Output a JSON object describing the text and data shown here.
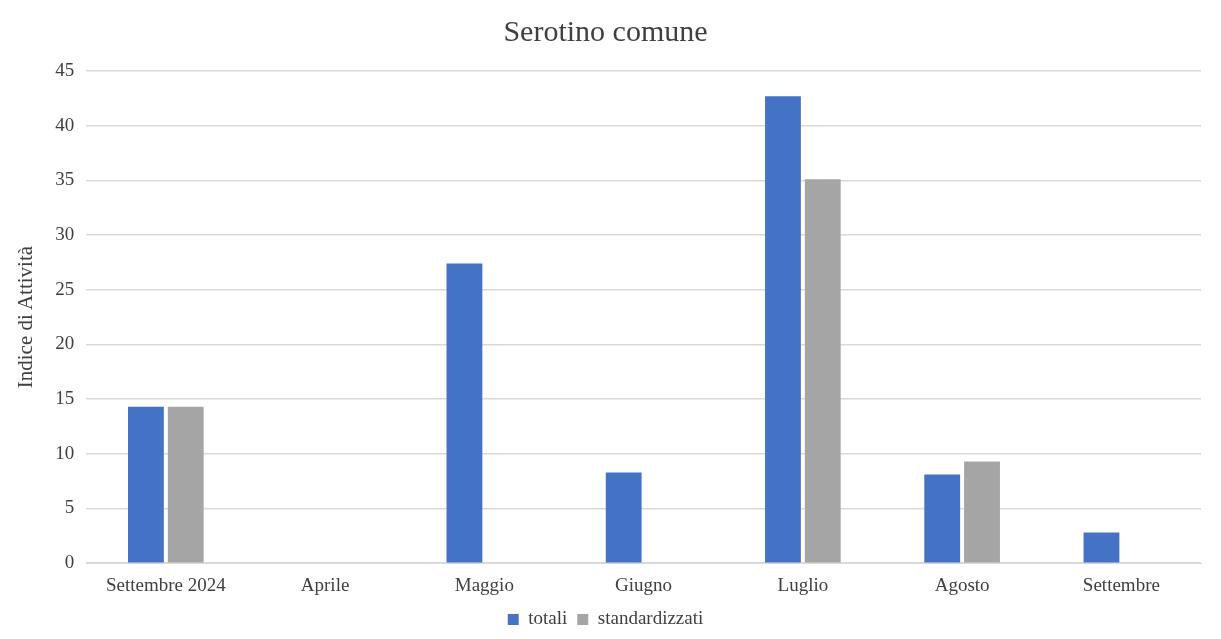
{
  "chart_data": {
    "type": "bar",
    "title": "Serotino comune",
    "ylabel": "Indice di Attività",
    "categories": [
      "Settembre 2024",
      "Aprile",
      "Maggio",
      "Giugno",
      "Luglio",
      "Agosto",
      "Settembre"
    ],
    "series": [
      {
        "name": "totali",
        "color": "#4472c4",
        "values": [
          14.3,
          0,
          27.4,
          8.3,
          42.7,
          8.1,
          2.8
        ]
      },
      {
        "name": "standardizzati",
        "color": "#a5a5a5",
        "values": [
          14.3,
          0,
          0,
          0,
          35.1,
          9.3,
          0
        ]
      }
    ],
    "ylim": [
      0,
      45
    ],
    "yticks": [
      0,
      5,
      10,
      15,
      20,
      25,
      30,
      35,
      40,
      45
    ],
    "grid": "y",
    "legend": "bottom"
  }
}
